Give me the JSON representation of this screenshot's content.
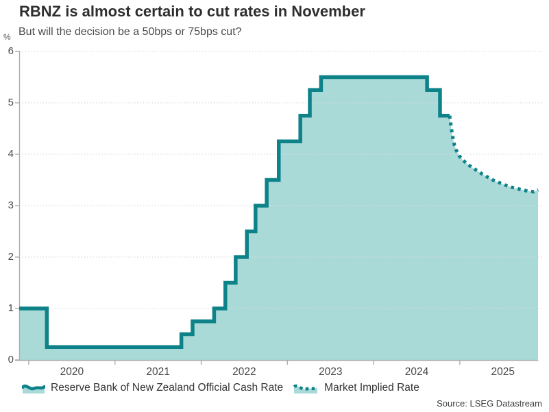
{
  "header": {
    "title": "RBNZ is almost certain to cut rates in November",
    "subtitle": "But will the decision be a 50bps or 75bps cut?"
  },
  "axis": {
    "unit_label": "%"
  },
  "legend": [
    {
      "label": "Reserve Bank of New Zealand Official Cash Rate",
      "icon": "area-line-icon"
    },
    {
      "label": "Market Implied Rate",
      "icon": "dotted-line-icon"
    }
  ],
  "source": "Source: LSEG Datastream",
  "colors": {
    "line": "#0e8289",
    "fill": "#a9dad8",
    "grid": "#dbdbdb",
    "axis": "#acacac",
    "title": "#2e2e2e",
    "subtitle": "#4a4a4a",
    "tick_label": "#4a4a4a",
    "source": "#3d3d3d"
  },
  "chart_data": {
    "type": "area",
    "title": "RBNZ is almost certain to cut rates in November",
    "subtitle": "But will the decision be a 50bps or 75bps cut?",
    "ylabel": "%",
    "xlim": [
      2019.889,
      2025.907
    ],
    "ylim": [
      0,
      6
    ],
    "grid": true,
    "legend_position": "bottom",
    "y_ticks": [
      0,
      1,
      2,
      3,
      4,
      5,
      6
    ],
    "x_ticks": [
      {
        "year": 2020,
        "label": "2020"
      },
      {
        "year": 2021,
        "label": "2021"
      },
      {
        "year": 2022,
        "label": "2022"
      },
      {
        "year": 2023,
        "label": "2023"
      },
      {
        "year": 2024,
        "label": "2024"
      },
      {
        "year": 2025,
        "label": "2025"
      }
    ],
    "series": [
      {
        "name": "Reserve Bank of New Zealand Official Cash Rate",
        "style": "step-solid-area",
        "points": [
          [
            2019.889,
            1.0
          ],
          [
            2020.21,
            0.25
          ],
          [
            2021.77,
            0.5
          ],
          [
            2021.9,
            0.75
          ],
          [
            2022.15,
            1.0
          ],
          [
            2022.28,
            1.5
          ],
          [
            2022.4,
            2.0
          ],
          [
            2022.53,
            2.5
          ],
          [
            2022.63,
            3.0
          ],
          [
            2022.76,
            3.5
          ],
          [
            2022.9,
            4.25
          ],
          [
            2023.15,
            4.75
          ],
          [
            2023.26,
            5.25
          ],
          [
            2023.39,
            5.5
          ],
          [
            2024.62,
            5.25
          ],
          [
            2024.77,
            4.75
          ],
          [
            2024.881,
            4.75
          ]
        ]
      },
      {
        "name": "Market Implied Rate",
        "style": "dotted-line",
        "points": [
          [
            2024.881,
            4.75
          ],
          [
            2024.897,
            4.56
          ],
          [
            2024.913,
            4.37
          ],
          [
            2024.937,
            4.18
          ],
          [
            2024.961,
            4.07
          ],
          [
            2024.992,
            3.97
          ],
          [
            2025.032,
            3.89
          ],
          [
            2025.08,
            3.82
          ],
          [
            2025.135,
            3.75
          ],
          [
            2025.191,
            3.69
          ],
          [
            2025.255,
            3.62
          ],
          [
            2025.318,
            3.56
          ],
          [
            2025.382,
            3.5
          ],
          [
            2025.453,
            3.45
          ],
          [
            2025.525,
            3.4
          ],
          [
            2025.596,
            3.36
          ],
          [
            2025.668,
            3.33
          ],
          [
            2025.74,
            3.3
          ],
          [
            2025.803,
            3.28
          ],
          [
            2025.859,
            3.27
          ],
          [
            2025.907,
            3.31
          ]
        ]
      }
    ]
  }
}
